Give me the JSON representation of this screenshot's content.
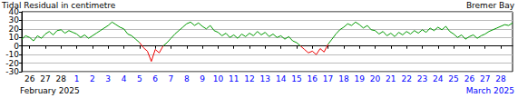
{
  "chart_data": {
    "type": "line",
    "title": "Tidal Residual in centimetre",
    "subtitle": "Bremer Bay",
    "categories": [
      null,
      null,
      "26",
      null,
      null,
      null,
      "27",
      null,
      null,
      null,
      "28",
      null,
      null,
      null,
      "1",
      null,
      null,
      null,
      "2",
      null,
      null,
      null,
      "3",
      null,
      null,
      null,
      "4",
      null,
      null,
      null,
      "5",
      null,
      null,
      null,
      "6",
      null,
      null,
      null,
      "7",
      null,
      null,
      null,
      "8",
      null,
      null,
      null,
      "9",
      null,
      null,
      null,
      "10",
      null,
      null,
      null,
      "11",
      null,
      null,
      null,
      "12",
      null,
      null,
      null,
      "13",
      null,
      null,
      null,
      "14",
      null,
      null,
      null,
      "15",
      null,
      null,
      null,
      "16",
      null,
      null,
      null,
      "17",
      null,
      null,
      null,
      "18",
      null,
      null,
      null,
      "19",
      null,
      null,
      null,
      "20",
      null,
      null,
      null,
      "21",
      null,
      null,
      null,
      "22",
      null,
      null,
      null,
      "23",
      null,
      null,
      null,
      "24",
      null,
      null,
      null,
      "25",
      null,
      null,
      null,
      "26",
      null,
      null,
      null,
      "27",
      null,
      null,
      null,
      "28",
      null,
      null,
      null
    ],
    "series": [
      {
        "color": "#009900",
        "values": [
          8,
          12,
          10,
          6,
          12,
          9,
          14,
          17,
          13,
          18,
          19,
          15,
          18,
          16,
          14,
          10,
          13,
          9,
          12,
          15,
          18,
          21,
          24,
          28,
          25,
          22,
          20,
          14,
          12,
          8,
          4,
          null,
          null,
          null,
          null,
          null,
          0,
          4,
          9,
          14,
          18,
          22,
          26,
          28,
          24,
          27,
          23,
          20,
          24,
          18,
          16,
          12,
          15,
          10,
          13,
          9,
          14,
          11,
          15,
          12,
          17,
          13,
          16,
          11,
          14,
          10,
          12,
          8,
          11,
          6,
          4,
          0,
          null,
          null,
          null,
          null,
          null,
          null,
          2,
          8,
          14,
          19,
          22,
          26,
          24,
          28,
          25,
          21,
          24,
          19,
          18,
          14,
          17,
          12,
          15,
          11,
          16,
          13,
          17,
          14,
          18,
          15,
          19,
          16,
          21,
          18,
          22,
          19,
          23,
          17,
          14,
          10,
          13,
          8,
          11,
          13,
          9,
          12,
          14,
          17,
          19,
          21,
          23,
          25,
          24,
          27
        ]
      },
      {
        "color": "#ee0000",
        "values": [
          null,
          null,
          null,
          null,
          null,
          null,
          null,
          null,
          null,
          null,
          null,
          null,
          null,
          null,
          null,
          null,
          null,
          null,
          null,
          null,
          null,
          null,
          null,
          null,
          null,
          null,
          null,
          null,
          null,
          null,
          4,
          -2,
          -6,
          -18,
          -4,
          -8,
          0,
          null,
          null,
          null,
          null,
          null,
          null,
          null,
          null,
          null,
          null,
          null,
          null,
          null,
          null,
          null,
          null,
          null,
          null,
          null,
          null,
          null,
          null,
          null,
          null,
          null,
          null,
          null,
          null,
          null,
          null,
          null,
          null,
          null,
          null,
          0,
          -4,
          -8,
          -6,
          -10,
          -3,
          -7,
          2,
          null,
          null,
          null,
          null,
          null,
          null,
          null,
          null,
          null,
          null,
          null,
          null,
          null,
          null,
          null,
          null,
          null,
          null,
          null,
          null,
          null,
          null,
          null,
          null,
          null,
          null,
          null,
          null,
          null,
          null,
          null,
          null,
          null,
          null,
          null,
          null,
          null,
          null,
          null,
          null,
          null,
          null,
          null,
          null,
          null,
          null,
          null
        ]
      }
    ],
    "annotations": [
      {
        "text": "February 2025",
        "color": "#000000"
      },
      {
        "text": "March 2025",
        "color": "#0000ff"
      }
    ],
    "ylim": [
      -30,
      40
    ],
    "yticks": [
      -30,
      -20,
      -10,
      0,
      10,
      20,
      30,
      40
    ],
    "grid": true
  }
}
